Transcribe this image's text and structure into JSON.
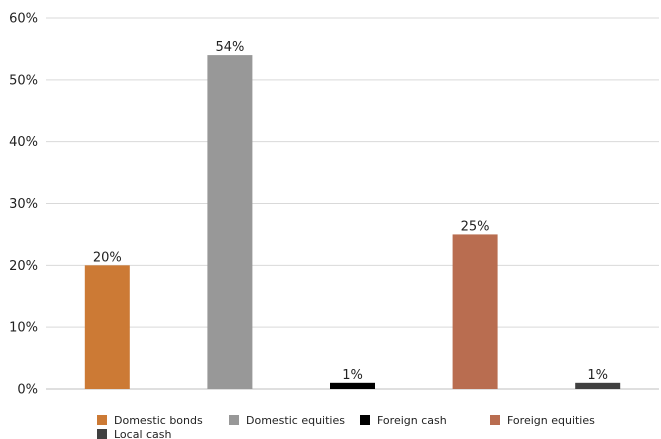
{
  "chart_data": {
    "type": "bar",
    "title": "",
    "xlabel": "",
    "ylabel": "",
    "ylim": [
      0,
      60
    ],
    "ytick_step": 10,
    "ytick_labels": [
      "0%",
      "10%",
      "20%",
      "30%",
      "40%",
      "50%",
      "60%"
    ],
    "grid": true,
    "legend_position": "bottom",
    "categories": [
      "Domestic bonds",
      "Domestic equities",
      "Foreign cash",
      "Foreign equities",
      "Local cash"
    ],
    "values": [
      20,
      54,
      1,
      25,
      1
    ],
    "data_labels": [
      "20%",
      "54%",
      "1%",
      "25%",
      "1%"
    ],
    "colors": [
      "#cc7a35",
      "#989898",
      "#000000",
      "#b96d50",
      "#404040"
    ],
    "legend": [
      "Domestic bonds",
      "Domestic equities",
      "Foreign cash",
      "Foreign equities",
      "Local cash"
    ]
  }
}
